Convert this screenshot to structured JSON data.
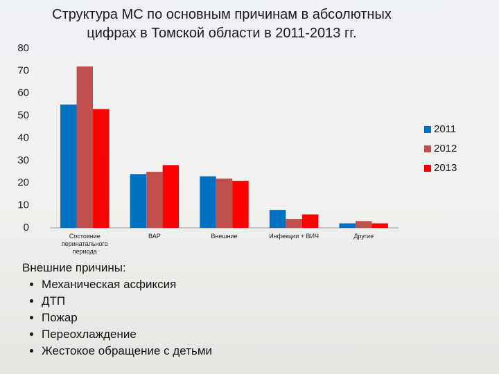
{
  "chart_data": {
    "type": "bar",
    "title": "Структура МС по основным причинам в абсолютных цифрах в Томской области в 2011-2013 гг.",
    "categories": [
      "Состояние перинатального периода",
      "ВАР",
      "Внешние",
      "Инфекции + ВИЧ",
      "Другие"
    ],
    "series": [
      {
        "name": "2011",
        "color": "#0070c0",
        "values": [
          55,
          24,
          23,
          8,
          2
        ]
      },
      {
        "name": "2012",
        "color": "#c0504d",
        "values": [
          72,
          25,
          22,
          4,
          3
        ]
      },
      {
        "name": "2013",
        "color": "#ff0000",
        "values": [
          53,
          28,
          21,
          6,
          2
        ]
      }
    ],
    "ylim": [
      0,
      80
    ],
    "yticks": [
      0,
      10,
      20,
      30,
      40,
      50,
      60,
      70,
      80
    ],
    "grid": false,
    "legend": "right"
  },
  "text_block": {
    "heading": "Внешние причины:",
    "items": [
      "Механическая асфиксия",
      "ДТП",
      "Пожар",
      "Переохлаждение",
      "Жестокое обращение с детьми"
    ]
  }
}
